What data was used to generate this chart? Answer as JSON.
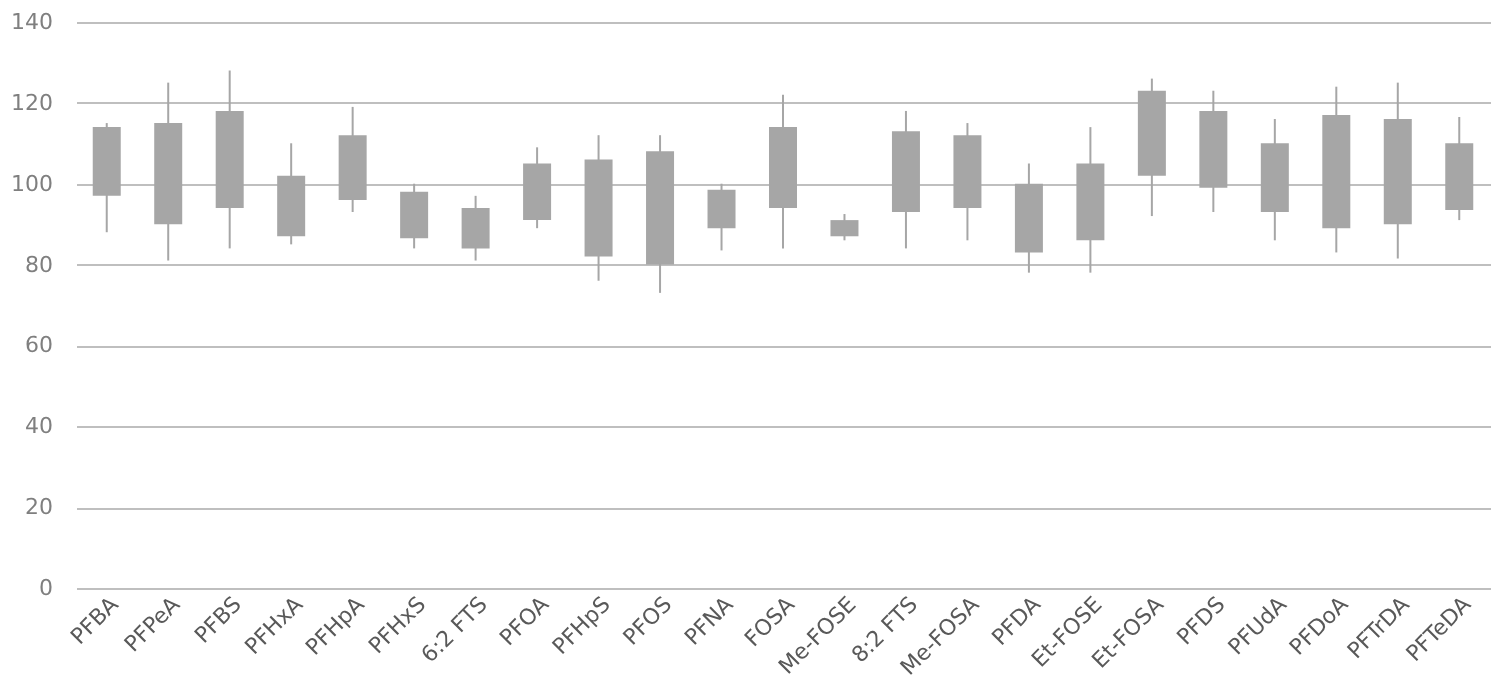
{
  "chart_data": {
    "type": "candlestick",
    "categories": [
      "PFBA",
      "PFPeA",
      "PFBS",
      "PFHxA",
      "PFHpA",
      "PFHxS",
      "6:2 FTS",
      "PFOA",
      "PFHpS",
      "PFOS",
      "PFNA",
      "FOSA",
      "Me-FOSE",
      "8:2 FTS",
      "Me-FOSA",
      "PFDA",
      "Et-FOSE",
      "Et-FOSA",
      "PFDS",
      "PFUdA",
      "PFDoA",
      "PFTrDA",
      "PFTeDA"
    ],
    "ohlc": [
      [
        97,
        115,
        88,
        114
      ],
      [
        90,
        125,
        81,
        115
      ],
      [
        94,
        128,
        84,
        118
      ],
      [
        87,
        110,
        85,
        102
      ],
      [
        96,
        119,
        93,
        112
      ],
      [
        86.5,
        100,
        84,
        98
      ],
      [
        84,
        97,
        81,
        94
      ],
      [
        91,
        109,
        89,
        105
      ],
      [
        82,
        112,
        76,
        106
      ],
      [
        80,
        112,
        73,
        108
      ],
      [
        89,
        100,
        83.5,
        98.5
      ],
      [
        94,
        122,
        84,
        114
      ],
      [
        87,
        92.5,
        86,
        91
      ],
      [
        93,
        118,
        84,
        113
      ],
      [
        94,
        115,
        86,
        112
      ],
      [
        83,
        105,
        78,
        100
      ],
      [
        86,
        114,
        78,
        105
      ],
      [
        102,
        126,
        92,
        123
      ],
      [
        99,
        123,
        93,
        118
      ],
      [
        93,
        116,
        86,
        110
      ],
      [
        89,
        124,
        83,
        117
      ],
      [
        90,
        125,
        81.5,
        116
      ],
      [
        93.5,
        116.5,
        91,
        110
      ]
    ],
    "color": "#a6a6a6",
    "ylim": [
      0,
      140
    ],
    "yticks": [
      0,
      20,
      40,
      60,
      80,
      100,
      120,
      140
    ],
    "grid": "y"
  }
}
